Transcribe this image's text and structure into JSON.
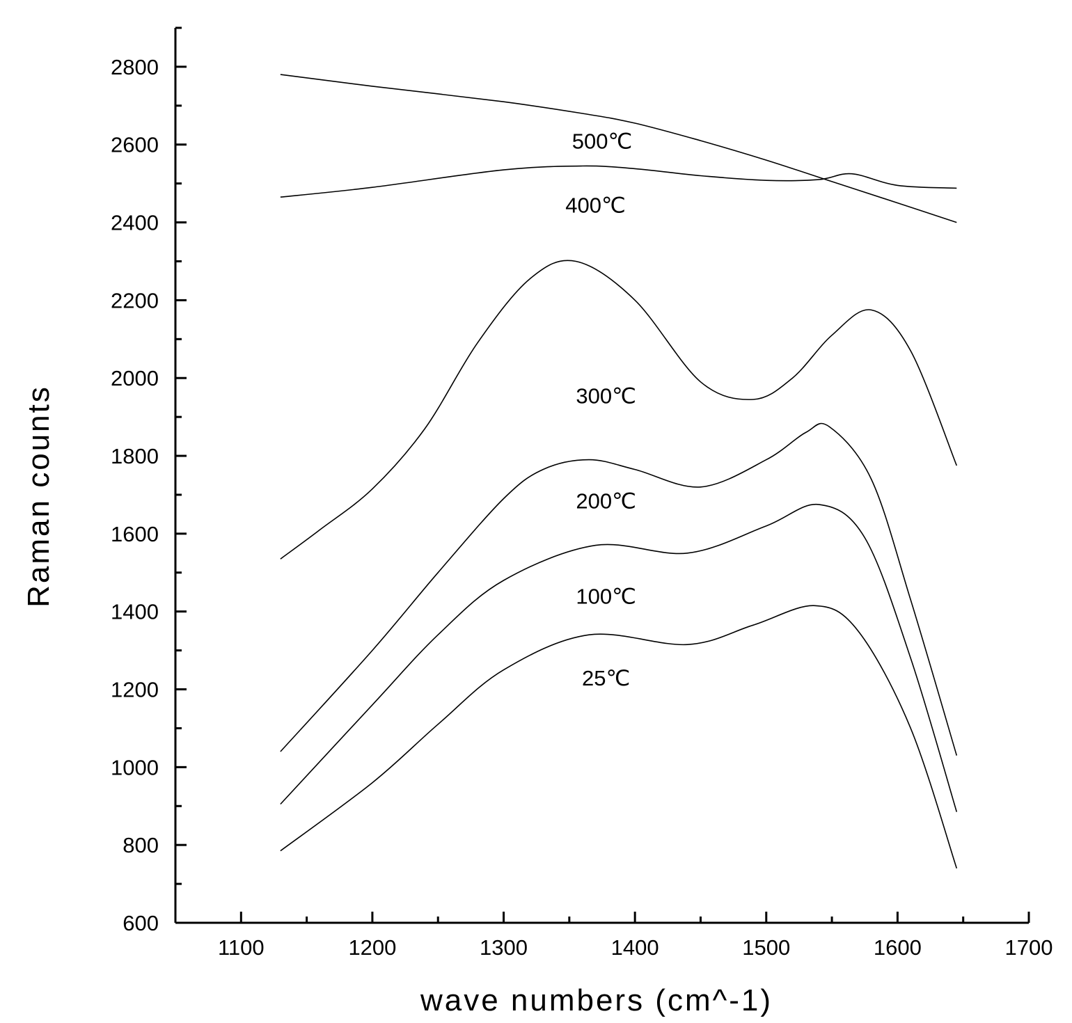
{
  "chart_data": {
    "type": "line",
    "title": "",
    "xlabel": "wave numbers (cm^-1)",
    "ylabel": "Raman counts",
    "xlim": [
      1050,
      1700
    ],
    "ylim": [
      600,
      2900
    ],
    "x_ticks": [
      1100,
      1200,
      1300,
      1400,
      1500,
      1600,
      1700
    ],
    "y_ticks": [
      600,
      800,
      1000,
      1200,
      1400,
      1600,
      1800,
      2000,
      2200,
      2400,
      2600,
      2800
    ],
    "grid": false,
    "legend": "none",
    "series": [
      {
        "name": "500℃",
        "x": [
          1130,
          1200,
          1300,
          1360,
          1400,
          1450,
          1500,
          1550,
          1600,
          1645
        ],
        "y": [
          2780,
          2750,
          2710,
          2680,
          2655,
          2610,
          2560,
          2505,
          2450,
          2400
        ]
      },
      {
        "name": "400℃",
        "x": [
          1130,
          1200,
          1300,
          1360,
          1400,
          1450,
          1500,
          1540,
          1565,
          1600,
          1645
        ],
        "y": [
          2465,
          2490,
          2535,
          2545,
          2538,
          2520,
          2508,
          2510,
          2525,
          2495,
          2488
        ]
      },
      {
        "name": "300℃",
        "x": [
          1130,
          1160,
          1200,
          1240,
          1280,
          1320,
          1355,
          1400,
          1450,
          1490,
          1520,
          1550,
          1580,
          1610,
          1645
        ],
        "y": [
          1535,
          1610,
          1715,
          1870,
          2090,
          2255,
          2300,
          2200,
          1990,
          1945,
          2000,
          2110,
          2175,
          2070,
          1775
        ]
      },
      {
        "name": "200℃",
        "x": [
          1130,
          1200,
          1250,
          1300,
          1330,
          1365,
          1400,
          1450,
          1500,
          1530,
          1548,
          1580,
          1610,
          1645
        ],
        "y": [
          1040,
          1300,
          1500,
          1690,
          1765,
          1790,
          1765,
          1720,
          1790,
          1860,
          1875,
          1740,
          1430,
          1030
        ]
      },
      {
        "name": "100℃",
        "x": [
          1130,
          1200,
          1250,
          1300,
          1370,
          1440,
          1500,
          1540,
          1575,
          1610,
          1645
        ],
        "y": [
          905,
          1160,
          1340,
          1480,
          1570,
          1550,
          1620,
          1675,
          1590,
          1280,
          885
        ]
      },
      {
        "name": "25℃",
        "x": [
          1130,
          1200,
          1250,
          1300,
          1365,
          1440,
          1490,
          1537,
          1570,
          1610,
          1645
        ],
        "y": [
          785,
          960,
          1110,
          1250,
          1340,
          1315,
          1365,
          1415,
          1350,
          1100,
          740
        ]
      }
    ],
    "annotations": [
      {
        "text": "500℃",
        "x": 1375,
        "y": 2590
      },
      {
        "text": "400℃",
        "x": 1370,
        "y": 2425
      },
      {
        "text": "300℃",
        "x": 1378,
        "y": 1935
      },
      {
        "text": "200℃",
        "x": 1378,
        "y": 1665
      },
      {
        "text": "100℃",
        "x": 1378,
        "y": 1420
      },
      {
        "text": "25℃",
        "x": 1378,
        "y": 1210
      }
    ]
  }
}
